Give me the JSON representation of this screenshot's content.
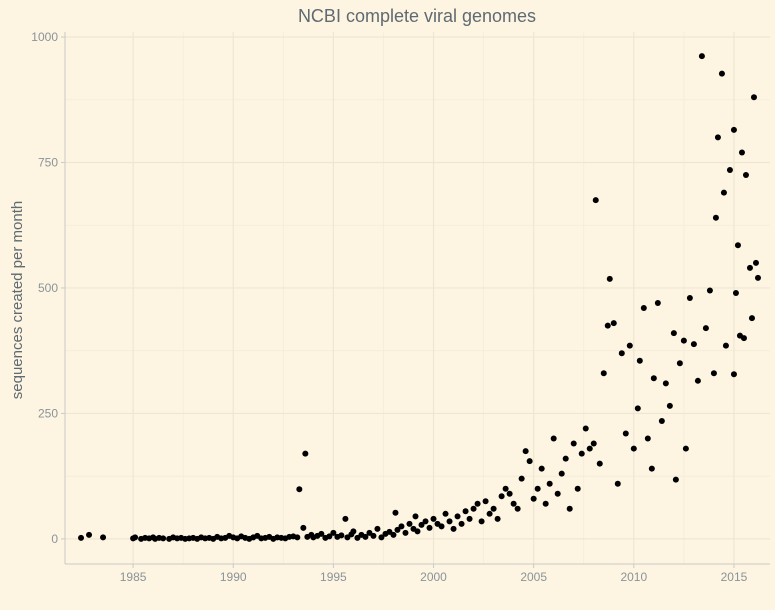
{
  "chart_data": {
    "type": "scatter",
    "title": "NCBI complete viral genomes",
    "xlabel": "",
    "ylabel": "sequences created per month",
    "xlim": [
      1981.6,
      2016.8
    ],
    "ylim": [
      -50,
      1010
    ],
    "x_ticks": [
      1985,
      1990,
      1995,
      2000,
      2005,
      2010,
      2015
    ],
    "y_ticks": [
      0,
      250,
      500,
      750,
      1000
    ],
    "grid": true,
    "point_color": "#000000",
    "points": [
      [
        1982.4,
        2
      ],
      [
        1982.8,
        8
      ],
      [
        1983.5,
        3
      ],
      [
        1985.0,
        1
      ],
      [
        1985.1,
        3
      ],
      [
        1985.4,
        0
      ],
      [
        1985.6,
        2
      ],
      [
        1985.8,
        1
      ],
      [
        1986.0,
        3
      ],
      [
        1986.1,
        0
      ],
      [
        1986.3,
        2
      ],
      [
        1986.5,
        1
      ],
      [
        1986.8,
        0
      ],
      [
        1987.0,
        3
      ],
      [
        1987.2,
        1
      ],
      [
        1987.4,
        2
      ],
      [
        1987.6,
        0
      ],
      [
        1987.8,
        1
      ],
      [
        1988.0,
        2
      ],
      [
        1988.2,
        0
      ],
      [
        1988.4,
        3
      ],
      [
        1988.6,
        1
      ],
      [
        1988.8,
        2
      ],
      [
        1989.0,
        0
      ],
      [
        1989.2,
        4
      ],
      [
        1989.4,
        1
      ],
      [
        1989.6,
        2
      ],
      [
        1989.8,
        6
      ],
      [
        1990.0,
        3
      ],
      [
        1990.2,
        1
      ],
      [
        1990.4,
        5
      ],
      [
        1990.6,
        2
      ],
      [
        1990.8,
        0
      ],
      [
        1991.0,
        3
      ],
      [
        1991.2,
        6
      ],
      [
        1991.4,
        1
      ],
      [
        1991.6,
        2
      ],
      [
        1991.8,
        4
      ],
      [
        1992.0,
        0
      ],
      [
        1992.2,
        3
      ],
      [
        1992.4,
        2
      ],
      [
        1992.6,
        1
      ],
      [
        1992.8,
        4
      ],
      [
        1993.0,
        5
      ],
      [
        1993.2,
        3
      ],
      [
        1993.3,
        99
      ],
      [
        1993.5,
        22
      ],
      [
        1993.6,
        170
      ],
      [
        1993.7,
        4
      ],
      [
        1993.9,
        8
      ],
      [
        1994.0,
        3
      ],
      [
        1994.2,
        6
      ],
      [
        1994.4,
        10
      ],
      [
        1994.6,
        2
      ],
      [
        1994.8,
        5
      ],
      [
        1995.0,
        12
      ],
      [
        1995.2,
        4
      ],
      [
        1995.4,
        7
      ],
      [
        1995.6,
        40
      ],
      [
        1995.7,
        3
      ],
      [
        1995.9,
        9
      ],
      [
        1996.0,
        15
      ],
      [
        1996.2,
        2
      ],
      [
        1996.4,
        8
      ],
      [
        1996.6,
        4
      ],
      [
        1996.8,
        12
      ],
      [
        1997.0,
        6
      ],
      [
        1997.2,
        20
      ],
      [
        1997.4,
        3
      ],
      [
        1997.6,
        10
      ],
      [
        1997.8,
        14
      ],
      [
        1998.0,
        8
      ],
      [
        1998.1,
        52
      ],
      [
        1998.2,
        18
      ],
      [
        1998.4,
        25
      ],
      [
        1998.6,
        12
      ],
      [
        1998.8,
        30
      ],
      [
        1999.0,
        20
      ],
      [
        1999.1,
        45
      ],
      [
        1999.2,
        15
      ],
      [
        1999.4,
        28
      ],
      [
        1999.6,
        35
      ],
      [
        1999.8,
        22
      ],
      [
        2000.0,
        40
      ],
      [
        2000.2,
        30
      ],
      [
        2000.4,
        25
      ],
      [
        2000.6,
        50
      ],
      [
        2000.8,
        35
      ],
      [
        2001.0,
        20
      ],
      [
        2001.2,
        45
      ],
      [
        2001.4,
        30
      ],
      [
        2001.6,
        55
      ],
      [
        2001.8,
        40
      ],
      [
        2002.0,
        60
      ],
      [
        2002.2,
        70
      ],
      [
        2002.4,
        35
      ],
      [
        2002.6,
        75
      ],
      [
        2002.8,
        50
      ],
      [
        2003.0,
        60
      ],
      [
        2003.2,
        40
      ],
      [
        2003.4,
        85
      ],
      [
        2003.6,
        100
      ],
      [
        2003.8,
        90
      ],
      [
        2004.0,
        70
      ],
      [
        2004.2,
        60
      ],
      [
        2004.4,
        120
      ],
      [
        2004.6,
        175
      ],
      [
        2004.8,
        155
      ],
      [
        2005.0,
        80
      ],
      [
        2005.2,
        100
      ],
      [
        2005.4,
        140
      ],
      [
        2005.6,
        70
      ],
      [
        2005.8,
        110
      ],
      [
        2006.0,
        200
      ],
      [
        2006.2,
        90
      ],
      [
        2006.4,
        130
      ],
      [
        2006.6,
        160
      ],
      [
        2006.8,
        60
      ],
      [
        2007.0,
        190
      ],
      [
        2007.2,
        100
      ],
      [
        2007.4,
        170
      ],
      [
        2007.6,
        220
      ],
      [
        2007.8,
        180
      ],
      [
        2008.0,
        190
      ],
      [
        2008.1,
        675
      ],
      [
        2008.3,
        150
      ],
      [
        2008.5,
        330
      ],
      [
        2008.7,
        425
      ],
      [
        2008.8,
        518
      ],
      [
        2009.0,
        430
      ],
      [
        2009.2,
        110
      ],
      [
        2009.4,
        370
      ],
      [
        2009.6,
        210
      ],
      [
        2009.8,
        385
      ],
      [
        2010.0,
        180
      ],
      [
        2010.2,
        260
      ],
      [
        2010.3,
        355
      ],
      [
        2010.5,
        460
      ],
      [
        2010.7,
        200
      ],
      [
        2010.9,
        140
      ],
      [
        2011.0,
        320
      ],
      [
        2011.2,
        470
      ],
      [
        2011.4,
        235
      ],
      [
        2011.6,
        310
      ],
      [
        2011.8,
        265
      ],
      [
        2012.0,
        410
      ],
      [
        2012.1,
        118
      ],
      [
        2012.3,
        350
      ],
      [
        2012.5,
        395
      ],
      [
        2012.6,
        180
      ],
      [
        2012.8,
        480
      ],
      [
        2013.0,
        388
      ],
      [
        2013.2,
        315
      ],
      [
        2013.4,
        962
      ],
      [
        2013.6,
        420
      ],
      [
        2013.8,
        495
      ],
      [
        2014.0,
        330
      ],
      [
        2014.1,
        640
      ],
      [
        2014.2,
        800
      ],
      [
        2014.4,
        927
      ],
      [
        2014.5,
        690
      ],
      [
        2014.6,
        385
      ],
      [
        2014.8,
        735
      ],
      [
        2015.0,
        815
      ],
      [
        2015.1,
        490
      ],
      [
        2015.2,
        585
      ],
      [
        2015.4,
        770
      ],
      [
        2015.6,
        725
      ],
      [
        2015.8,
        540
      ],
      [
        2016.0,
        880
      ],
      [
        2016.1,
        550
      ],
      [
        2016.2,
        520
      ],
      [
        2015.3,
        405
      ],
      [
        2015.5,
        400
      ],
      [
        2015.9,
        440
      ],
      [
        2015.0,
        328
      ]
    ]
  }
}
